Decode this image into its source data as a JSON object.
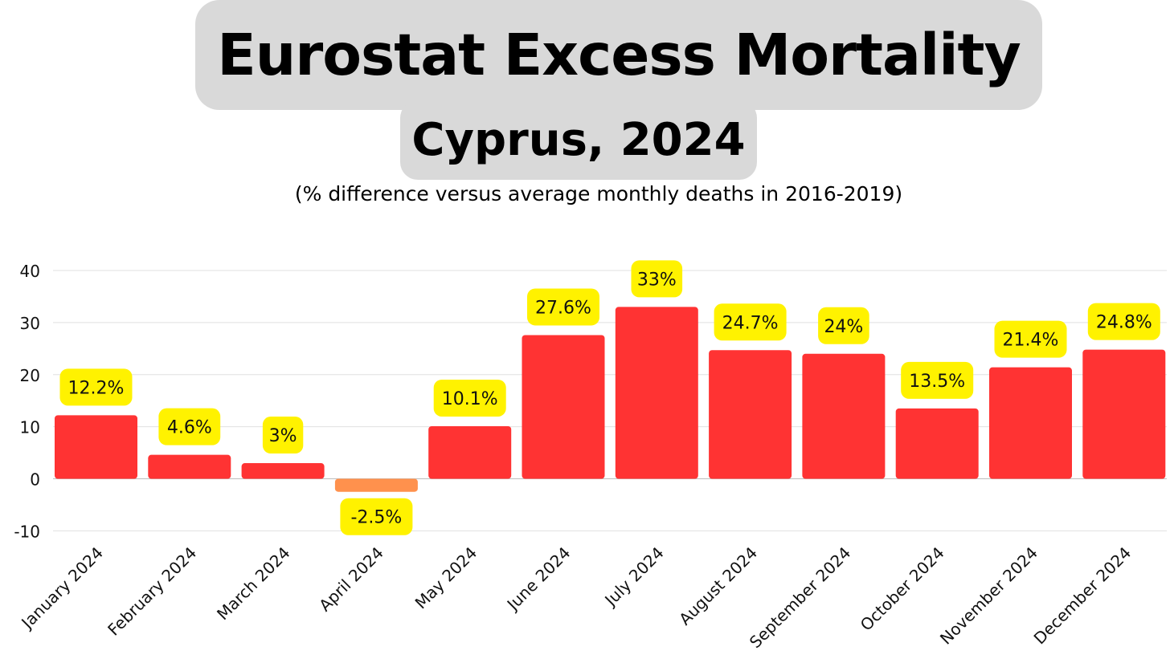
{
  "title": "Eurostat Excess Mortality",
  "subtitle": "Cyprus, 2024",
  "note": "(% difference versus average monthly deaths in 2016-2019)",
  "chart_data": {
    "type": "bar",
    "categories": [
      "January 2024",
      "February 2024",
      "March 2024",
      "April 2024",
      "May 2024",
      "June 2024",
      "July 2024",
      "August 2024",
      "September 2024",
      "October 2024",
      "November 2024",
      "December 2024"
    ],
    "values": [
      12.2,
      4.6,
      3,
      -2.5,
      10.1,
      27.6,
      33,
      24.7,
      24,
      13.5,
      21.4,
      24.8
    ],
    "data_labels": [
      "12.2%",
      "4.6%",
      "3%",
      "-2.5%",
      "10.1%",
      "27.6%",
      "33%",
      "24.7%",
      "24%",
      "13.5%",
      "21.4%",
      "24.8%"
    ],
    "ylim": [
      -10,
      40
    ],
    "yticks": [
      40,
      30,
      20,
      10,
      0,
      -10
    ],
    "ytick_labels": [
      "40",
      "30",
      "20",
      "10",
      "0",
      "-10"
    ],
    "grid": true,
    "colors": {
      "positive": "#ff3333",
      "negative": "#ff914d",
      "label_background": "#fff200",
      "grid": "#e0e0e0"
    }
  }
}
